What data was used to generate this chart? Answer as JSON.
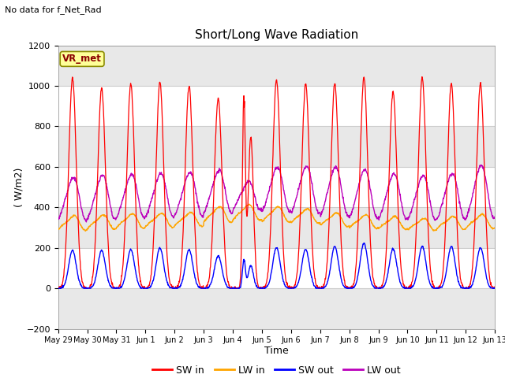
{
  "title": "Short/Long Wave Radiation",
  "subtitle": "No data for f_Net_Rad",
  "xlabel": "Time",
  "ylabel": "( W/m2)",
  "ylim": [
    -200,
    1200
  ],
  "yticks": [
    -200,
    0,
    200,
    400,
    600,
    800,
    1000,
    1200
  ],
  "legend_label": "VR_met",
  "series_colors": {
    "SW_in": "#FF0000",
    "LW_in": "#FFA500",
    "SW_out": "#0000FF",
    "LW_out": "#BB00BB"
  },
  "legend_entries": [
    "SW in",
    "LW in",
    "SW out",
    "LW out"
  ],
  "legend_colors": [
    "#FF0000",
    "#FFA500",
    "#0000FF",
    "#BB00BB"
  ],
  "n_days": 15,
  "day_labels": [
    "May 29",
    "May 30",
    "May 31",
    "Jun 1",
    "Jun 2",
    "Jun 3",
    "Jun 4",
    "Jun 5",
    "Jun 6",
    "Jun 7",
    "Jun 8",
    "Jun 9",
    "Jun 10",
    "Jun 11",
    "Jun 12",
    "Jun 13"
  ]
}
